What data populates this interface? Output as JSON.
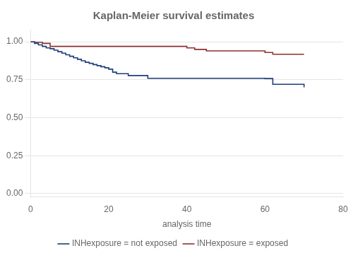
{
  "chart_data": {
    "type": "step",
    "title": "Kaplan-Meier survival estimates",
    "xlabel": "analysis time",
    "xlim": [
      0,
      80
    ],
    "xticks": [
      0,
      20,
      40,
      60,
      80
    ],
    "ylim": [
      -0.02,
      1.08
    ],
    "yticks": [
      {
        "value": 0.0,
        "label": "0.00"
      },
      {
        "value": 0.25,
        "label": "0.25"
      },
      {
        "value": 0.5,
        "label": "0.50"
      },
      {
        "value": 0.75,
        "label": "0.75"
      },
      {
        "value": 1.0,
        "label": "1.00"
      }
    ],
    "grid": "y",
    "legend": "bottom",
    "series": [
      {
        "name": "INHexposure = not exposed",
        "color": "#1f3d7a",
        "x": [
          0,
          1,
          2,
          3,
          4,
          5,
          6,
          7,
          8,
          9,
          10,
          11,
          12,
          13,
          14,
          15,
          16,
          17,
          18,
          19,
          20,
          21,
          22,
          25,
          30,
          60,
          62,
          70
        ],
        "values": [
          1.0,
          0.99,
          0.98,
          0.97,
          0.96,
          0.955,
          0.945,
          0.935,
          0.925,
          0.915,
          0.905,
          0.895,
          0.885,
          0.875,
          0.865,
          0.858,
          0.85,
          0.843,
          0.836,
          0.829,
          0.82,
          0.8,
          0.79,
          0.778,
          0.76,
          0.758,
          0.72,
          0.7
        ]
      },
      {
        "name": "INHexposure = exposed",
        "color": "#8b3030",
        "x": [
          0,
          1,
          3,
          5,
          40,
          42,
          45,
          60,
          62,
          70
        ],
        "values": [
          1.0,
          0.997,
          0.99,
          0.97,
          0.96,
          0.95,
          0.94,
          0.93,
          0.918,
          0.918
        ]
      }
    ]
  }
}
